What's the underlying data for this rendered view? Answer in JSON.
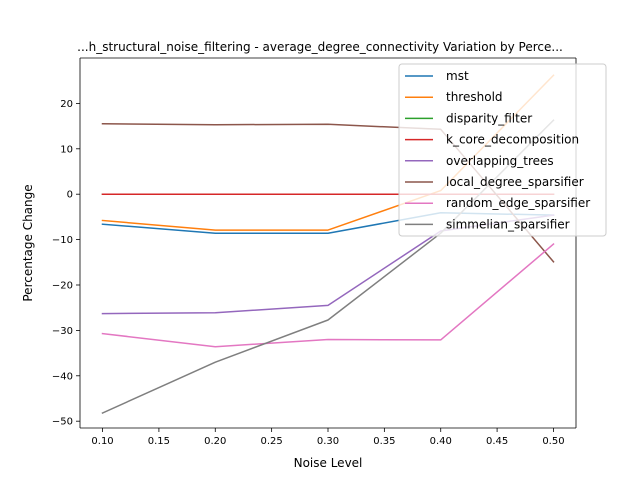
{
  "chart_data": {
    "type": "line",
    "title": "...h_structural_noise_filtering - average_degree_connectivity Variation by Perce...",
    "xlabel": "Noise Level",
    "ylabel": "Percentage Change",
    "xlim": [
      0.08,
      0.52
    ],
    "ylim": [
      -51.5,
      30.0
    ],
    "xticks": [
      0.1,
      0.15,
      0.2,
      0.25,
      0.3,
      0.35,
      0.4,
      0.45,
      0.5
    ],
    "xtick_labels": [
      "0.10",
      "0.15",
      "0.20",
      "0.25",
      "0.30",
      "0.35",
      "0.40",
      "0.45",
      "0.50"
    ],
    "yticks": [
      20,
      10,
      0,
      -10,
      -20,
      -30,
      -40,
      -50
    ],
    "ytick_labels": [
      "20",
      "10",
      "0",
      "−10",
      "−20",
      "−30",
      "−40",
      "−50"
    ],
    "grid": false,
    "legend_position": "top-right",
    "x": [
      0.1,
      0.2,
      0.3,
      0.4,
      0.5
    ],
    "series": [
      {
        "name": "mst",
        "color": "#1f77b4",
        "values": [
          -6.6,
          -8.6,
          -8.6,
          -4.1,
          -4.6
        ]
      },
      {
        "name": "threshold",
        "color": "#ff7f0e",
        "values": [
          -5.8,
          -7.9,
          -7.9,
          0.8,
          26.2
        ]
      },
      {
        "name": "disparity_filter",
        "color": "#2ca02c",
        "values": [
          0.0,
          0.0,
          0.0,
          0.0,
          0.0
        ]
      },
      {
        "name": "k_core_decomposition",
        "color": "#d62728",
        "values": [
          0.0,
          0.0,
          0.0,
          0.0,
          0.0
        ]
      },
      {
        "name": "overlapping_trees",
        "color": "#9467bd",
        "values": [
          -26.3,
          -26.1,
          -24.5,
          -8.1,
          -4.6
        ]
      },
      {
        "name": "local_degree_sparsifier",
        "color": "#8c564b",
        "values": [
          15.5,
          15.3,
          15.4,
          14.3,
          -14.9
        ]
      },
      {
        "name": "random_edge_sparsifier",
        "color": "#e377c2",
        "values": [
          -30.7,
          -33.6,
          -32.0,
          -32.1,
          -11.0
        ]
      },
      {
        "name": "simmelian_sparsifier",
        "color": "#7f7f7f",
        "values": [
          -48.2,
          -37.0,
          -27.7,
          -8.6,
          16.3
        ]
      }
    ]
  }
}
